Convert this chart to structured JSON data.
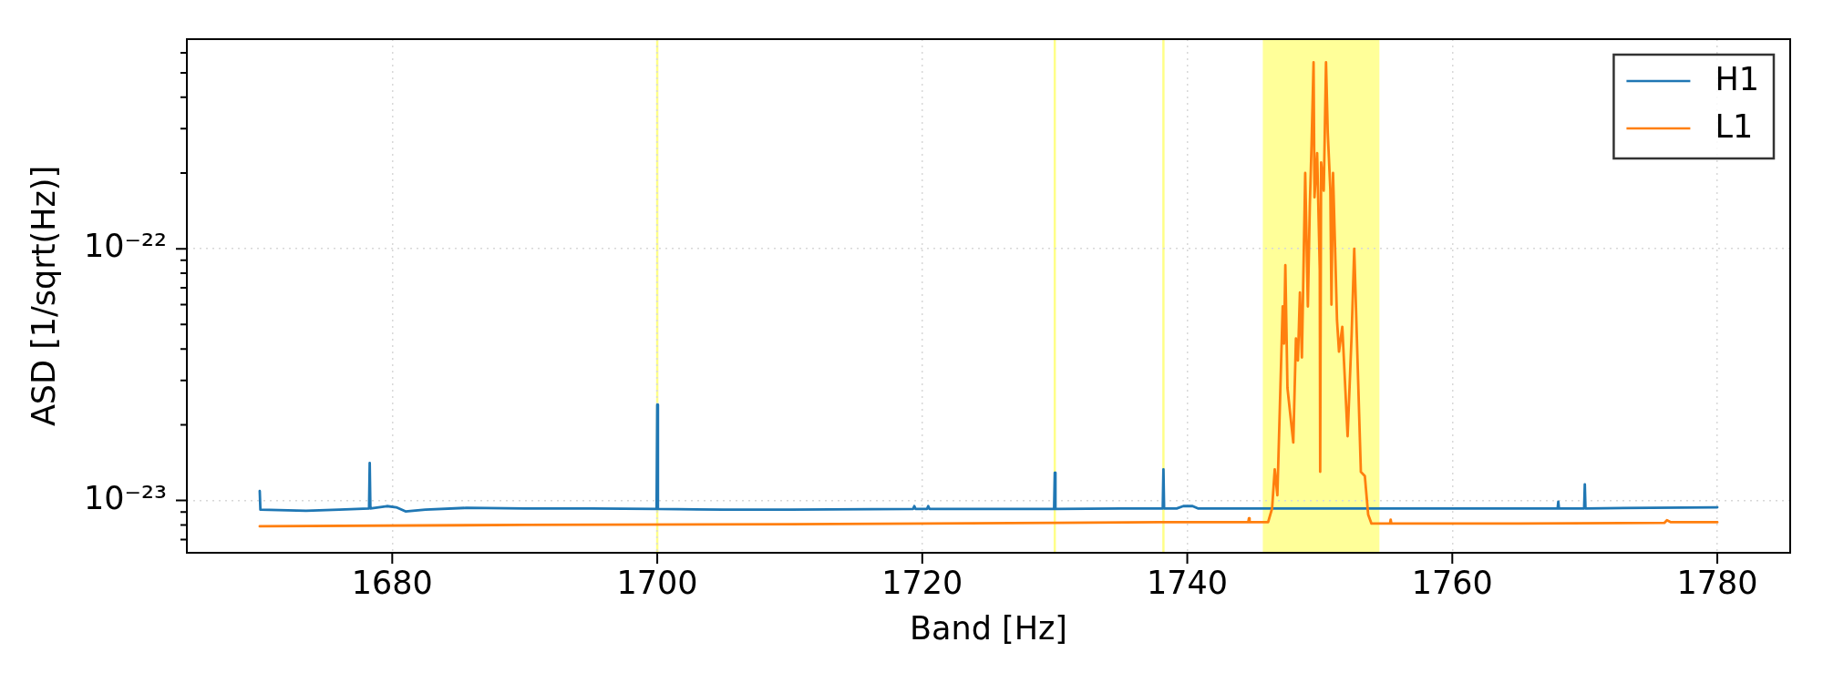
{
  "chart_data": {
    "type": "line",
    "xlabel": "Band [Hz]",
    "ylabel": "ASD [1/sqrt(Hz)]",
    "series": [
      {
        "name": "H1",
        "color": "#1f77b4",
        "x": [
          1670,
          1670.05,
          1673.5,
          1676,
          1678.25,
          1678.3,
          1678.35,
          1679.6,
          1680.3,
          1681,
          1682.5,
          1685.6,
          1690,
          1695,
          1699.95,
          1700,
          1700.05,
          1705,
          1710,
          1719.3,
          1719.4,
          1719.5,
          1720.35,
          1720.45,
          1720.55,
          1725,
          1729.95,
          1730,
          1730.05,
          1735,
          1738.15,
          1738.2,
          1738.25,
          1739.2,
          1739.7,
          1740.4,
          1740.8,
          1745,
          1750,
          1755,
          1760,
          1765,
          1767.95,
          1768,
          1768.05,
          1769.95,
          1770,
          1770.05,
          1775,
          1780
        ],
        "values": [
          1.09e-23,
          9.2e-24,
          9.1e-24,
          9.2e-24,
          9.3e-24,
          1.41e-23,
          9.3e-24,
          9.5e-24,
          9.4e-24,
          9.05e-24,
          9.2e-24,
          9.35e-24,
          9.3e-24,
          9.3e-24,
          9.25e-24,
          2.4e-23,
          9.25e-24,
          9.2e-24,
          9.2e-24,
          9.25e-24,
          9.5e-24,
          9.25e-24,
          9.25e-24,
          9.5e-24,
          9.25e-24,
          9.25e-24,
          9.25e-24,
          1.29e-23,
          9.25e-24,
          9.3e-24,
          9.3e-24,
          1.33e-23,
          9.3e-24,
          9.3e-24,
          9.5e-24,
          9.5e-24,
          9.3e-24,
          9.3e-24,
          9.3e-24,
          9.3e-24,
          9.3e-24,
          9.3e-24,
          9.3e-24,
          9.9e-24,
          9.3e-24,
          9.3e-24,
          1.16e-23,
          9.3e-24,
          9.35e-24,
          9.4e-24
        ]
      },
      {
        "name": "L1",
        "color": "#ff7f0e",
        "x": [
          1670,
          1690,
          1710,
          1730,
          1738,
          1744.6,
          1744.65,
          1744.7,
          1746.1,
          1746.4,
          1746.6,
          1746.8,
          1747.2,
          1747.3,
          1747.4,
          1747.56,
          1748,
          1748.2,
          1748.35,
          1748.5,
          1748.65,
          1748.9,
          1749.1,
          1749.25,
          1749.38,
          1749.53,
          1749.6,
          1749.8,
          1750,
          1750.03,
          1750.1,
          1750.3,
          1750.47,
          1750.6,
          1750.8,
          1750.88,
          1751,
          1751.3,
          1751.45,
          1751.7,
          1752.1,
          1752.4,
          1752.6,
          1752.8,
          1753.1,
          1753.4,
          1753.65,
          1753.9,
          1755.3,
          1755.35,
          1755.4,
          1765,
          1776,
          1776.2,
          1776.5,
          1780
        ],
        "values": [
          7.9e-24,
          8e-24,
          8.05e-24,
          8.15e-24,
          8.2e-24,
          8.2e-24,
          8.5e-24,
          8.2e-24,
          8.2e-24,
          9.3e-24,
          1.33e-23,
          1.05e-23,
          5.9e-23,
          4.2e-23,
          8.6e-23,
          2.8e-23,
          1.7e-23,
          4.4e-23,
          3.6e-23,
          6.7e-23,
          3.7e-23,
          2e-22,
          5.9e-23,
          1.5e-22,
          2.6e-22,
          5.5e-22,
          1.6e-22,
          2.4e-22,
          8.2e-23,
          1.3e-23,
          2.2e-22,
          1.7e-22,
          5.5e-22,
          2.9e-22,
          1.7e-22,
          6e-23,
          2e-22,
          5.2e-23,
          3.9e-23,
          4.9e-23,
          1.8e-23,
          4.5e-23,
          1e-22,
          4.4e-23,
          1.3e-23,
          1.25e-23,
          8.8e-24,
          8.1e-24,
          8.1e-24,
          8.4e-24,
          8.1e-24,
          8.1e-24,
          8.15e-24,
          8.35e-24,
          8.2e-24,
          8.2e-24
        ]
      }
    ],
    "xlim": [
      1664.5,
      1785.5
    ],
    "xticks": [
      1680,
      1700,
      1720,
      1740,
      1760,
      1780
    ],
    "ylim": [
      6.2e-24,
      6.8e-22
    ],
    "yticks": [
      {
        "value": 7e-24,
        "label": null
      },
      {
        "value": 8e-24,
        "label": null
      },
      {
        "value": 9e-24,
        "label": null
      },
      {
        "value": 1e-23,
        "label": "10⁻²³"
      },
      {
        "value": 2e-23,
        "label": null
      },
      {
        "value": 3e-23,
        "label": null
      },
      {
        "value": 4e-23,
        "label": null
      },
      {
        "value": 5e-23,
        "label": null
      },
      {
        "value": 6e-23,
        "label": null
      },
      {
        "value": 7e-23,
        "label": null
      },
      {
        "value": 8e-23,
        "label": null
      },
      {
        "value": 9e-23,
        "label": null
      },
      {
        "value": 1e-22,
        "label": "10⁻²²"
      },
      {
        "value": 2e-22,
        "label": null
      },
      {
        "value": 3e-22,
        "label": null
      },
      {
        "value": 4e-22,
        "label": null
      },
      {
        "value": 5e-22,
        "label": null
      },
      {
        "value": 6e-22,
        "label": null
      }
    ],
    "log": true,
    "grid": true,
    "legend": "top right",
    "line_style": "solid",
    "ref_lines": [
      {
        "axis": "x",
        "value": 1700,
        "color": "#ffff88"
      },
      {
        "axis": "x",
        "value": 1730,
        "color": "#ffff88"
      },
      {
        "axis": "x",
        "value": 1738.2,
        "color": "#ffff88"
      }
    ],
    "bands": [
      {
        "axis": "x",
        "from": 1745.7,
        "to": 1754.5,
        "color": "#ffff99"
      }
    ]
  }
}
